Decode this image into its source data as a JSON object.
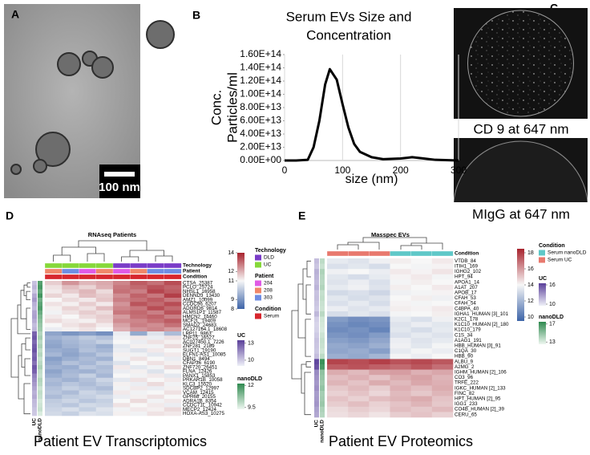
{
  "panel_labels": {
    "a": "A",
    "b": "B",
    "c": "C",
    "d": "D",
    "e": "E"
  },
  "images": {
    "a_scale_bar": "100 nm",
    "c_top_caption": "CD 9 at 647 nm",
    "c_bottom_caption": "MIgG at 647 nm"
  },
  "chart_data": [
    {
      "type": "line",
      "title": [
        "Serum EVs Size and",
        "Concentration"
      ],
      "xlabel": "size (nm)",
      "ylabel": [
        "Conc.",
        "Particles/ml"
      ],
      "x": [
        0,
        20,
        40,
        50,
        60,
        70,
        78,
        90,
        100,
        110,
        120,
        130,
        150,
        170,
        200,
        220,
        240,
        260,
        300
      ],
      "values": [
        0,
        0,
        1000000000000.0,
        20000000000000.0,
        60000000000000.0,
        115000000000000.0,
        138000000000000.0,
        122000000000000.0,
        85000000000000.0,
        50000000000000.0,
        25000000000000.0,
        13000000000000.0,
        5000000000000.0,
        2000000000000.0,
        3000000000000.0,
        5000000000000.0,
        3000000000000.0,
        1000000000000.0,
        0
      ],
      "color": "#000000",
      "xlim": [
        0,
        300
      ],
      "xticks": [
        0,
        100,
        200,
        300
      ],
      "ylim": [
        0,
        160000000000000.0
      ],
      "yticks": [
        {
          "value": 0,
          "label": "0.00E+00"
        },
        {
          "value": 20000000000000.0,
          "label": "2.00E+13"
        },
        {
          "value": 40000000000000.0,
          "label": "4.00E+13"
        },
        {
          "value": 60000000000000.0,
          "label": "6.00E+13"
        },
        {
          "value": 80000000000000.0,
          "label": "8.00E+13"
        },
        {
          "value": 100000000000000.0,
          "label": "1.00E+14"
        },
        {
          "value": 120000000000000.0,
          "label": "1.20E+14"
        },
        {
          "value": 140000000000000.0,
          "label": "1.40E+14"
        },
        {
          "value": 160000000000000.0,
          "label": "1.60E+14"
        }
      ],
      "grid": "x"
    },
    {
      "type": "heatmap",
      "title": "RNAseq Patients",
      "caption": "Patient EV Transcriptomics",
      "rows": [
        "CTSA_25387",
        "PCLO_25724",
        "NHSL1_16958",
        "DENND3_13430",
        "AMZ1_10099",
        "CCDC96_6207",
        "ADGRD6_9814",
        "ALMS1P1_11587",
        "HMCN2_14460",
        "MCF2L_19409",
        "SMAD2_24683",
        "AC127164.1_18608",
        "LRP11_9863",
        "ZNF25_16527",
        "AC027450.1_7226",
        "ZNF281_2189",
        "SUGT1_19190",
        "ELFN1-AS1_10085",
        "DBN1_8494",
        "CFAP36_6190",
        "ZNF720_26451",
        "FLNA_12426",
        "PANX1_15853",
        "PRKAR1B_10058",
        "KLC3_15520",
        "SDCBP2_12997",
        "VCAM_12415",
        "GPR68_20155",
        "ADRA1B_8354",
        "CCDC71L_10942",
        "MECP2_12424",
        "HOXA-AS3_10275"
      ],
      "values": [
        [
          11.6,
          12.4,
          11.9,
          12.1,
          12.6,
          13.2,
          12.9,
          13.4
        ],
        [
          11.3,
          11.8,
          11.5,
          12.0,
          12.8,
          13.0,
          13.3,
          13.1
        ],
        [
          11.2,
          11.6,
          11.9,
          11.4,
          12.9,
          12.7,
          13.5,
          13.2
        ],
        [
          11.5,
          11.2,
          11.8,
          11.6,
          12.5,
          13.1,
          12.8,
          13.6
        ],
        [
          11.0,
          11.4,
          11.2,
          11.7,
          12.7,
          12.9,
          13.2,
          12.8
        ],
        [
          11.3,
          11.1,
          11.6,
          11.2,
          12.4,
          13.3,
          13.0,
          13.4
        ],
        [
          11.1,
          11.5,
          11.3,
          11.8,
          12.6,
          12.8,
          13.4,
          13.0
        ],
        [
          10.9,
          11.3,
          11.6,
          11.4,
          12.8,
          13.0,
          12.7,
          13.3
        ],
        [
          11.2,
          11.0,
          11.4,
          11.6,
          12.3,
          12.9,
          13.1,
          12.7
        ],
        [
          11.4,
          11.2,
          11.1,
          11.5,
          12.5,
          12.6,
          12.9,
          13.2
        ],
        [
          11.0,
          11.3,
          11.5,
          11.2,
          12.2,
          12.7,
          12.5,
          12.9
        ],
        [
          10.8,
          11.1,
          11.3,
          11.0,
          12.0,
          12.4,
          12.6,
          12.3
        ],
        [
          9.3,
          9.0,
          9.2,
          8.9,
          10.8,
          9.4,
          10.6,
          9.8
        ],
        [
          9.6,
          9.8,
          10.1,
          9.9,
          10.9,
          11.2,
          10.8,
          11.3
        ],
        [
          9.4,
          9.7,
          9.9,
          10.2,
          11.0,
          10.8,
          11.3,
          11.1
        ],
        [
          9.3,
          9.6,
          9.8,
          9.5,
          10.7,
          11.1,
          10.9,
          11.4
        ],
        [
          9.5,
          9.4,
          9.9,
          9.7,
          10.8,
          10.6,
          11.2,
          11.0
        ],
        [
          9.7,
          9.3,
          9.6,
          10.0,
          11.1,
          10.9,
          10.7,
          11.2
        ],
        [
          9.2,
          9.5,
          9.8,
          9.6,
          10.9,
          11.3,
          11.0,
          10.8
        ],
        [
          9.4,
          9.9,
          9.7,
          10.1,
          10.6,
          11.0,
          11.3,
          11.1
        ],
        [
          9.6,
          9.5,
          10.0,
          9.8,
          11.2,
          10.7,
          10.9,
          11.4
        ],
        [
          9.3,
          9.7,
          9.6,
          9.9,
          10.8,
          11.1,
          10.6,
          11.0
        ],
        [
          9.5,
          9.8,
          10.2,
          9.7,
          11.0,
          10.9,
          11.2,
          10.7
        ],
        [
          9.8,
          9.6,
          9.9,
          10.3,
          10.7,
          11.3,
          11.0,
          11.2
        ],
        [
          9.7,
          10.0,
          9.8,
          10.1,
          11.1,
          10.8,
          11.4,
          10.9
        ],
        [
          9.9,
          10.2,
          10.0,
          9.8,
          10.9,
          11.2,
          10.8,
          11.1
        ],
        [
          10.0,
          9.8,
          10.3,
          10.1,
          11.2,
          10.9,
          11.0,
          11.3
        ],
        [
          9.8,
          10.1,
          10.2,
          10.4,
          10.8,
          11.1,
          11.3,
          11.0
        ],
        [
          10.1,
          10.3,
          10.0,
          10.2,
          11.0,
          11.4,
          10.9,
          11.2
        ],
        [
          10.2,
          10.0,
          10.4,
          10.3,
          11.3,
          11.0,
          11.2,
          10.8
        ],
        [
          10.3,
          10.5,
          10.2,
          10.6,
          10.9,
          11.2,
          11.1,
          11.4
        ],
        [
          10.4,
          10.2,
          10.6,
          10.5,
          11.1,
          10.9,
          11.3,
          11.2
        ]
      ],
      "zlim": [
        8,
        14
      ],
      "zticks": [
        14,
        12,
        11,
        9,
        8
      ],
      "colors": [
        "#3d64a8",
        "#f7f7f7",
        "#a8232d"
      ],
      "column_annotations": [
        {
          "name": "Technology",
          "values": [
            "UC",
            "UC",
            "UC",
            "UC",
            "DLD",
            "DLD",
            "DLD",
            "DLD"
          ],
          "legend": [
            {
              "label": "DLD",
              "color": "#7a3cc8"
            },
            {
              "label": "UC",
              "color": "#86d83a"
            }
          ]
        },
        {
          "name": "Patient",
          "values": [
            "208",
            "303",
            "204",
            "208",
            "204",
            "208",
            "303",
            "303"
          ],
          "legend": [
            {
              "label": "204",
              "color": "#e05be6"
            },
            {
              "label": "208",
              "color": "#f0876a"
            },
            {
              "label": "303",
              "color": "#6f8de3"
            }
          ]
        },
        {
          "name": "Condition",
          "values": [
            "Serum",
            "Serum",
            "Serum",
            "Serum",
            "Serum",
            "Serum",
            "Serum",
            "Serum"
          ],
          "legend": [
            {
              "label": "Serum",
              "color": "#d7262d"
            }
          ]
        }
      ],
      "row_annotations": [
        {
          "name": "UC",
          "values": [
            10.2,
            10.5,
            10.1,
            10.8,
            11.2,
            10.6,
            10.4,
            10.9,
            11.0,
            10.7,
            10.3,
            10.5,
            12.6,
            12.9,
            12.4,
            12.8,
            13.0,
            12.5,
            12.7,
            12.2,
            12.9,
            12.6,
            11.8,
            11.5,
            11.2,
            10.9,
            10.6,
            10.8,
            10.4,
            10.3,
            10.1,
            10.0
          ],
          "lim": [
            9,
            13.5
          ],
          "ticks": [
            13,
            10
          ],
          "colors": [
            "#eef0f8",
            "#5a3f9a"
          ]
        },
        {
          "name": "nanoDLD",
          "values": [
            11.6,
            11.8,
            11.4,
            11.9,
            11.2,
            11.5,
            11.7,
            11.3,
            11.0,
            10.8,
            10.6,
            10.5,
            10.2,
            10.4,
            10.1,
            10.3,
            10.0,
            10.2,
            9.9,
            10.1,
            10.3,
            10.0,
            9.9,
            10.2,
            10.1,
            9.8,
            10.0,
            9.9,
            9.7,
            9.8,
            9.9,
            9.6
          ],
          "lim": [
            9.3,
            12.2
          ],
          "ticks": [
            12,
            9.5
          ],
          "colors": [
            "#eef7f0",
            "#2f8a4f"
          ]
        }
      ]
    },
    {
      "type": "heatmap",
      "title": "Masspec EVs",
      "caption": "Patient EV Proteomics",
      "rows": [
        "VTDB_84",
        "ITIH1_169",
        "IGHG2_102",
        "HPT_94",
        "APOA1_14",
        "A1AT_207",
        "APOB_17",
        "CFAH_53",
        "CFAH_54",
        "C4BPA_40",
        "IGHA1_HUMAN [3]_101",
        "K2C1_178",
        "K1C10_HUMAN [2]_180",
        "K1C10_179",
        "C1S_34",
        "A1AG1_191",
        "HBB_HUMAN [3]_91",
        "C1QA_30",
        "HBB_90",
        "ALBU_9",
        "A2MG_2",
        "IGHM_HUMAN [2]_106",
        "CO3_96",
        "TRFE_222",
        "IGKC_HUMAN [2]_133",
        "FINC_82",
        "HPT_HUMAN [2]_95",
        "IGG1_233",
        "CO4B_HUMAN [2]_39",
        "CERU_65"
      ],
      "values": [
        [
          13.6,
          13.4,
          13.8,
          14.2,
          14.0,
          14.3
        ],
        [
          13.3,
          13.5,
          13.2,
          14.0,
          13.9,
          14.1
        ],
        [
          13.8,
          14.0,
          13.7,
          14.3,
          14.1,
          14.4
        ],
        [
          13.5,
          13.2,
          13.6,
          14.1,
          14.3,
          13.9
        ],
        [
          13.4,
          13.7,
          13.3,
          13.9,
          14.2,
          14.0
        ],
        [
          13.6,
          13.8,
          13.4,
          14.2,
          14.0,
          14.3
        ],
        [
          13.1,
          13.3,
          13.0,
          13.8,
          13.9,
          14.1
        ],
        [
          13.5,
          13.2,
          13.4,
          14.0,
          14.2,
          13.8
        ],
        [
          13.3,
          13.6,
          13.2,
          14.1,
          13.9,
          14.0
        ],
        [
          13.7,
          13.4,
          13.6,
          14.2,
          14.1,
          14.3
        ],
        [
          13.2,
          13.5,
          13.3,
          13.9,
          14.0,
          14.2
        ],
        [
          11.2,
          10.8,
          11.0,
          13.6,
          13.3,
          13.8
        ],
        [
          10.9,
          10.6,
          10.8,
          13.4,
          13.7,
          13.5
        ],
        [
          10.7,
          10.9,
          10.5,
          13.5,
          13.2,
          13.6
        ],
        [
          11.0,
          10.8,
          11.2,
          13.3,
          13.6,
          13.4
        ],
        [
          11.3,
          11.1,
          11.5,
          13.7,
          13.4,
          13.6
        ],
        [
          11.6,
          11.4,
          11.8,
          13.8,
          13.5,
          13.9
        ],
        [
          11.5,
          11.7,
          11.3,
          13.6,
          13.9,
          13.7
        ],
        [
          11.8,
          11.6,
          12.0,
          13.9,
          13.7,
          14.0
        ],
        [
          17.8,
          17.6,
          17.9,
          17.5,
          17.7,
          17.4
        ],
        [
          17.3,
          17.5,
          17.2,
          17.0,
          17.4,
          16.9
        ],
        [
          15.6,
          15.3,
          15.8,
          15.9,
          15.5,
          15.7
        ],
        [
          15.2,
          15.5,
          15.1,
          15.6,
          15.8,
          15.4
        ],
        [
          15.4,
          15.1,
          15.6,
          15.3,
          15.7,
          15.5
        ],
        [
          15.0,
          15.3,
          14.9,
          15.5,
          15.2,
          15.6
        ],
        [
          14.8,
          15.1,
          14.7,
          15.3,
          15.0,
          15.4
        ],
        [
          15.1,
          14.8,
          15.2,
          15.4,
          15.6,
          15.1
        ],
        [
          14.9,
          15.2,
          14.8,
          15.1,
          15.4,
          15.0
        ],
        [
          14.6,
          14.9,
          14.7,
          15.2,
          15.0,
          15.3
        ],
        [
          14.5,
          14.7,
          14.4,
          14.9,
          15.1,
          14.8
        ]
      ],
      "zlim": [
        9.5,
        18.5
      ],
      "zticks": [
        18,
        16,
        14,
        12,
        10
      ],
      "colors": [
        "#3d64a8",
        "#f7f7f7",
        "#a8232d"
      ],
      "column_annotations": [
        {
          "name": "Condition",
          "values": [
            "Serum UC",
            "Serum UC",
            "Serum UC",
            "Serum nanoDLD",
            "Serum nanoDLD",
            "Serum nanoDLD"
          ],
          "legend": [
            {
              "label": "Serum nanoDLD",
              "color": "#5fc8c8"
            },
            {
              "label": "Serum UC",
              "color": "#e8796e"
            }
          ]
        }
      ],
      "row_annotations": [
        {
          "name": "UC",
          "values": [
            11.5,
            11.2,
            12.0,
            11.8,
            11.6,
            11.9,
            11.3,
            11.4,
            11.2,
            11.0,
            11.7,
            10.8,
            10.6,
            10.7,
            11.0,
            11.3,
            11.2,
            11.1,
            11.5,
            16.2,
            15.8,
            13.5,
            13.2,
            13.0,
            13.3,
            12.8,
            12.9,
            13.1,
            12.6,
            12.4
          ],
          "lim": [
            9.5,
            16.5
          ],
          "ticks": [
            16,
            10
          ],
          "colors": [
            "#eef0f8",
            "#5a3f9a"
          ]
        },
        {
          "name": "nanoDLD",
          "values": [
            13.8,
            13.5,
            14.2,
            14.0,
            13.9,
            14.1,
            13.6,
            13.7,
            13.5,
            13.4,
            13.9,
            13.3,
            13.2,
            13.1,
            13.4,
            13.6,
            13.5,
            13.3,
            13.8,
            17.2,
            16.8,
            15.0,
            14.8,
            14.6,
            14.9,
            14.4,
            14.5,
            14.7,
            14.2,
            14.0
          ],
          "lim": [
            12.5,
            17.5
          ],
          "ticks": [
            17,
            13
          ],
          "colors": [
            "#eef7f0",
            "#2f8a4f"
          ]
        }
      ]
    }
  ]
}
